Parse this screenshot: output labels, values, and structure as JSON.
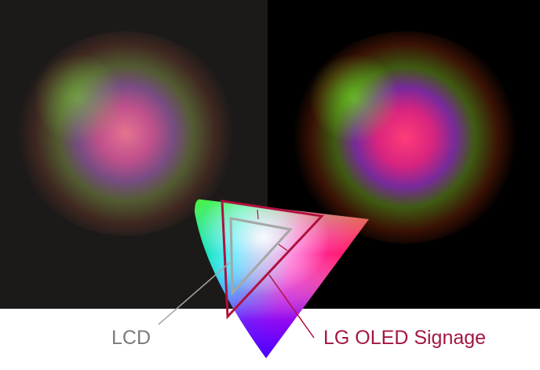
{
  "labels": {
    "lcd": "LCD",
    "oled": "LG OLED Signage"
  },
  "colors": {
    "lcd": "#a6a6a6",
    "oled": "#b0103f",
    "left_bg": "#1c1a19",
    "right_bg": "#000000"
  },
  "panels": {
    "left": "LCD display of color powder explosion",
    "right": "OLED display of color powder explosion"
  }
}
